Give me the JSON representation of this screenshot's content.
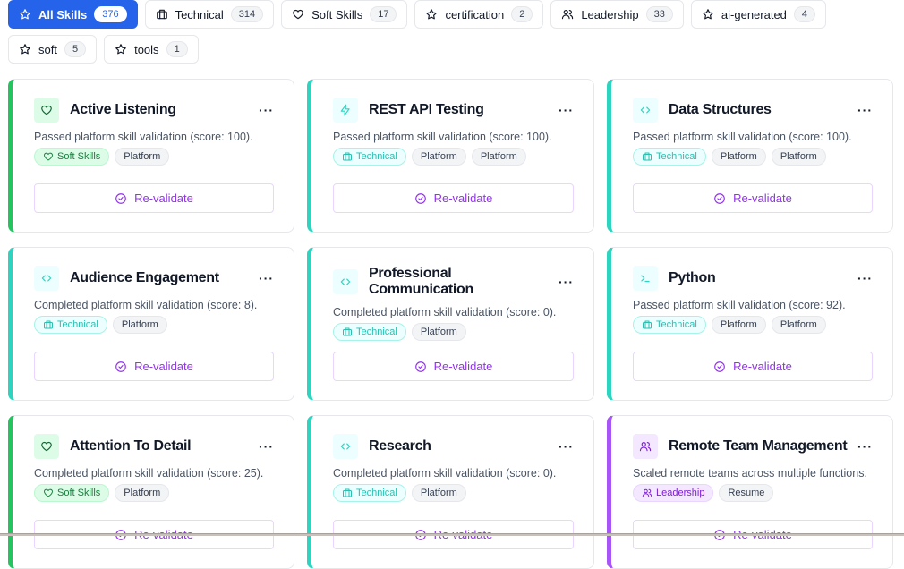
{
  "filters": [
    {
      "label": "All Skills",
      "count": "376",
      "icon": "star-icon",
      "active": true
    },
    {
      "label": "Technical",
      "count": "314",
      "icon": "briefcase-icon"
    },
    {
      "label": "Soft Skills",
      "count": "17",
      "icon": "heart-icon"
    },
    {
      "label": "certification",
      "count": "2",
      "icon": "star-icon"
    },
    {
      "label": "Leadership",
      "count": "33",
      "icon": "users-icon"
    },
    {
      "label": "ai-generated",
      "count": "4",
      "icon": "star-icon"
    },
    {
      "label": "soft",
      "count": "5",
      "icon": "star-icon"
    },
    {
      "label": "tools",
      "count": "1",
      "icon": "star-icon"
    }
  ],
  "colors": {
    "primary": "#2563eb",
    "soft": "#22c55e",
    "technical": "#2dd4bf",
    "leadership": "#a855f7",
    "revalidate": "#9333ea"
  },
  "cards": [
    {
      "title": "Active Listening",
      "icon": "heart-icon",
      "category": "soft",
      "desc": "Passed platform skill validation (score: 100).",
      "tags": [
        {
          "label": "Soft Skills",
          "cat": true
        },
        {
          "label": "Platform"
        }
      ],
      "action": "Re-validate",
      "more": "···"
    },
    {
      "title": "REST API Testing",
      "icon": "zap-icon",
      "category": "technical",
      "desc": "Passed platform skill validation (score: 100).",
      "tags": [
        {
          "label": "Technical",
          "cat": true
        },
        {
          "label": "Platform"
        },
        {
          "label": "Platform"
        }
      ],
      "action": "Re-validate",
      "more": "···"
    },
    {
      "title": "Data Structures",
      "icon": "code-icon",
      "category": "technical",
      "desc": "Passed platform skill validation (score: 100).",
      "tags": [
        {
          "label": "Technical",
          "cat": true
        },
        {
          "label": "Platform"
        },
        {
          "label": "Platform"
        }
      ],
      "action": "Re-validate",
      "more": "···"
    },
    {
      "title": "Audience Engagement",
      "icon": "code-icon",
      "category": "technical",
      "desc": "Completed platform skill validation (score: 8).",
      "tags": [
        {
          "label": "Technical",
          "cat": true
        },
        {
          "label": "Platform"
        }
      ],
      "action": "Re-validate",
      "more": "···"
    },
    {
      "title": "Professional Communication",
      "icon": "code-icon",
      "category": "technical",
      "desc": "Completed platform skill validation (score: 0).",
      "tags": [
        {
          "label": "Technical",
          "cat": true
        },
        {
          "label": "Platform"
        }
      ],
      "action": "Re-validate",
      "more": "···"
    },
    {
      "title": "Python",
      "icon": "terminal-icon",
      "category": "technical",
      "desc": "Passed platform skill validation (score: 92).",
      "tags": [
        {
          "label": "Technical",
          "cat": true
        },
        {
          "label": "Platform"
        },
        {
          "label": "Platform"
        }
      ],
      "action": "Re-validate",
      "more": "···"
    },
    {
      "title": "Attention To Detail",
      "icon": "heart-icon",
      "category": "soft",
      "desc": "Completed platform skill validation (score: 25).",
      "tags": [
        {
          "label": "Soft Skills",
          "cat": true
        },
        {
          "label": "Platform"
        }
      ],
      "action": "Re-validate",
      "more": "···"
    },
    {
      "title": "Research",
      "icon": "code-icon",
      "category": "technical",
      "desc": "Completed platform skill validation (score: 0).",
      "tags": [
        {
          "label": "Technical",
          "cat": true
        },
        {
          "label": "Platform"
        }
      ],
      "action": "Re-validate",
      "more": "···"
    },
    {
      "title": "Remote Team Management",
      "icon": "users-icon",
      "category": "leadership",
      "desc": "Scaled remote teams across multiple functions.",
      "tags": [
        {
          "label": "Leadership",
          "cat": true
        },
        {
          "label": "Resume"
        }
      ],
      "action": "Re-validate",
      "more": "···"
    }
  ]
}
